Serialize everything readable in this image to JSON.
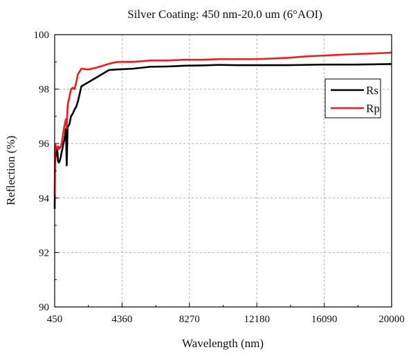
{
  "chart_data": {
    "type": "line",
    "title": "Silver Coating: 450 nm-20.0 um (6°AOI)",
    "xlabel": "Wavelength (nm)",
    "ylabel": "Reflection (%)",
    "xlim": [
      450,
      20000
    ],
    "ylim": [
      90,
      100
    ],
    "x_ticks": [
      450,
      4360,
      8270,
      12180,
      16090,
      20000
    ],
    "y_ticks": [
      90,
      92,
      94,
      96,
      98,
      100
    ],
    "x_tick_labels": [
      "450",
      "4360",
      "8270",
      "12180",
      "16090",
      "20000"
    ],
    "y_tick_labels": [
      "90",
      "92",
      "94",
      "96",
      "98",
      "100"
    ],
    "grid": true,
    "legend_position": "top-right",
    "series": [
      {
        "name": "Rs",
        "color": "#000000",
        "x": [
          450,
          470,
          500,
          560,
          600,
          650,
          700,
          760,
          800,
          860,
          900,
          950,
          1000,
          1050,
          1100,
          1150,
          1200,
          1300,
          1400,
          1500,
          1600,
          1700,
          1800,
          2000,
          2400,
          2800,
          3200,
          3600,
          4000,
          4360,
          5000,
          6000,
          7000,
          8000,
          9000,
          10000,
          11000,
          12000,
          13000,
          14000,
          15000,
          16000,
          17000,
          18000,
          19000,
          20000
        ],
        "y": [
          93.6,
          95.3,
          95.5,
          95.7,
          95.8,
          95.35,
          95.3,
          95.4,
          95.5,
          95.7,
          95.8,
          96.0,
          96.1,
          96.3,
          96.55,
          95.2,
          96.6,
          96.7,
          97.0,
          97.1,
          97.25,
          97.35,
          97.55,
          98.1,
          98.25,
          98.4,
          98.55,
          98.7,
          98.72,
          98.73,
          98.75,
          98.82,
          98.83,
          98.86,
          98.87,
          98.89,
          98.88,
          98.88,
          98.88,
          98.88,
          98.89,
          98.9,
          98.9,
          98.9,
          98.91,
          98.92
        ]
      },
      {
        "name": "Rp",
        "color": "#ee1c1c",
        "x": [
          450,
          470,
          500,
          560,
          600,
          650,
          700,
          760,
          800,
          860,
          900,
          950,
          1000,
          1050,
          1100,
          1150,
          1200,
          1300,
          1400,
          1500,
          1600,
          1700,
          1800,
          2000,
          2400,
          2800,
          3200,
          3600,
          4000,
          4360,
          5000,
          6000,
          7000,
          8000,
          9000,
          10000,
          11000,
          12000,
          13000,
          14000,
          15000,
          16000,
          17000,
          18000,
          19000,
          20000
        ],
        "y": [
          94.1,
          95.9,
          95.95,
          95.8,
          95.85,
          95.9,
          95.8,
          95.85,
          95.9,
          96.0,
          96.2,
          96.4,
          96.6,
          96.75,
          96.9,
          96.55,
          97.4,
          97.7,
          98.0,
          98.05,
          98.0,
          98.25,
          98.55,
          98.75,
          98.72,
          98.78,
          98.85,
          98.93,
          98.99,
          99.0,
          99.0,
          99.05,
          99.05,
          99.08,
          99.08,
          99.1,
          99.1,
          99.1,
          99.12,
          99.15,
          99.2,
          99.23,
          99.26,
          99.29,
          99.31,
          99.34
        ]
      }
    ]
  }
}
